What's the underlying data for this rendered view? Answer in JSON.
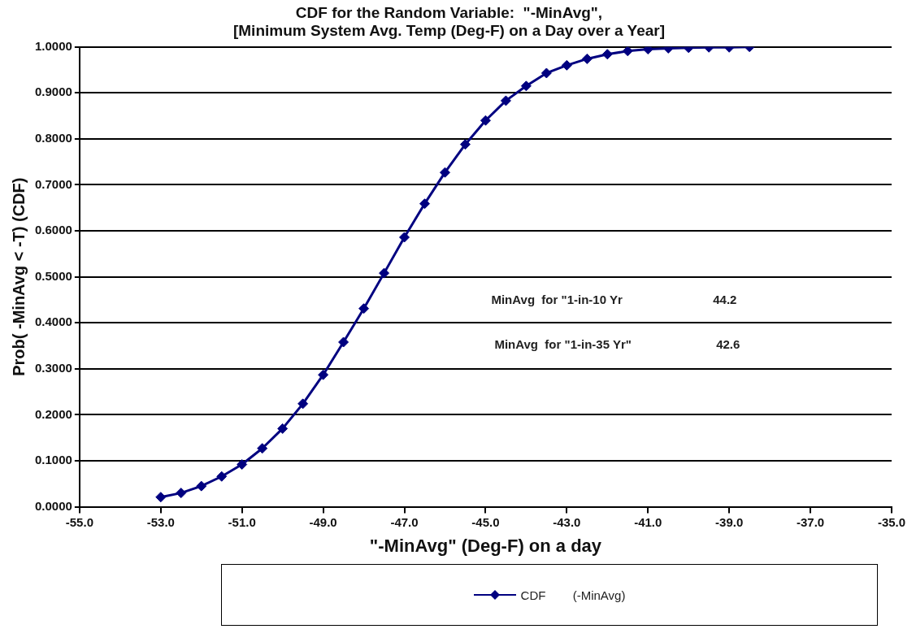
{
  "chart_data": {
    "type": "line",
    "title": "CDF for the Random Variable:  \"-MinAvg\",\n[Minimum System Avg. Temp (Deg-F) on a Day over a Year]",
    "xlabel": "\"-MinAvg\" (Deg-F) on a day",
    "ylabel": "Prob( -MinAvg < -T) (CDF)",
    "x": [
      -53,
      -52.5,
      -52,
      -51.5,
      -51,
      -50.5,
      -50,
      -49.5,
      -49,
      -48.5,
      -48,
      -47.5,
      -47,
      -46.5,
      -46,
      -45.5,
      -45,
      -44.5,
      -44,
      -43.5,
      -43,
      -42.5,
      -42,
      -41.5,
      -41,
      -40.5,
      -40,
      -39.5,
      -39,
      -38.5
    ],
    "series": [
      {
        "name": "CDF        (-MinAvg)",
        "color": "#000080",
        "values": [
          0.021,
          0.03,
          0.045,
          0.066,
          0.092,
          0.127,
          0.17,
          0.224,
          0.287,
          0.358,
          0.431,
          0.508,
          0.586,
          0.659,
          0.727,
          0.788,
          0.84,
          0.883,
          0.915,
          0.943,
          0.96,
          0.974,
          0.984,
          0.991,
          0.995,
          0.997,
          0.998,
          0.999,
          0.999,
          1.0
        ]
      }
    ],
    "xlim": [
      -55,
      -35
    ],
    "xticks": [
      {
        "value": -55,
        "label": "-55.0"
      },
      {
        "value": -53,
        "label": "-53.0"
      },
      {
        "value": -51,
        "label": "-51.0"
      },
      {
        "value": -49,
        "label": "-49.0"
      },
      {
        "value": -47,
        "label": "-47.0"
      },
      {
        "value": -45,
        "label": "-45.0"
      },
      {
        "value": -43,
        "label": "-43.0"
      },
      {
        "value": -41,
        "label": "-41.0"
      },
      {
        "value": -39,
        "label": "-39.0"
      },
      {
        "value": -37,
        "label": "-37.0"
      },
      {
        "value": -35,
        "label": "-35.0"
      }
    ],
    "ylim": [
      0,
      1
    ],
    "yticks": [
      {
        "value": 0,
        "label": "0.0000"
      },
      {
        "value": 0.1,
        "label": "0.1000"
      },
      {
        "value": 0.2,
        "label": "0.2000"
      },
      {
        "value": 0.3,
        "label": "0.3000"
      },
      {
        "value": 0.4,
        "label": "0.4000"
      },
      {
        "value": 0.5,
        "label": "0.5000"
      },
      {
        "value": 0.6,
        "label": "0.6000"
      },
      {
        "value": 0.7,
        "label": "0.7000"
      },
      {
        "value": 0.8,
        "label": "0.8000"
      },
      {
        "value": 0.9,
        "label": "0.9000"
      },
      {
        "value": 1,
        "label": "1.0000"
      }
    ],
    "annotations": [
      "MinAvg  for \"1-in-10 Yr",
      "44.2",
      "MinAvg  for \"1-in-35 Yr\"",
      "42.6"
    ],
    "grid": "y",
    "legend": "bottom",
    "marker": "diamond",
    "line_style": "solid"
  }
}
